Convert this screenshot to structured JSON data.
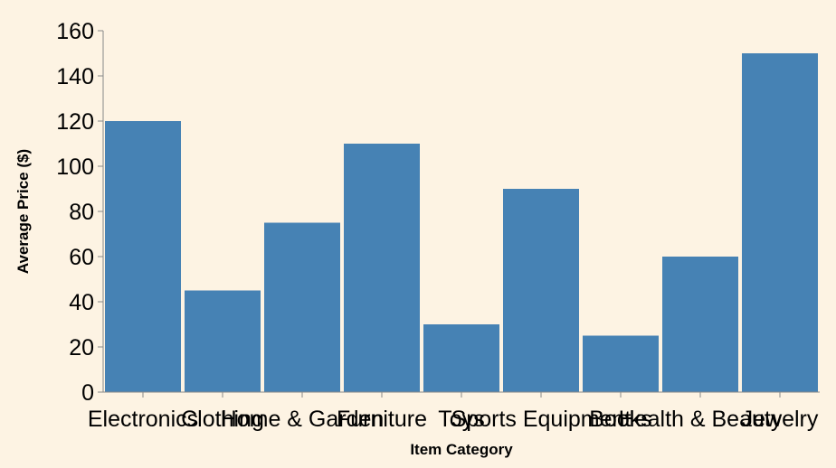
{
  "chart_data": {
    "type": "bar",
    "categories": [
      "Electronics",
      "Clothing",
      "Home & Garden",
      "Furniture",
      "Toys",
      "Sports Equipment",
      "Books",
      "Health & Beauty",
      "Jewelry"
    ],
    "values": [
      120,
      45,
      75,
      110,
      30,
      90,
      25,
      60,
      150
    ],
    "xlabel": "Item Category",
    "ylabel": "Average Price ($)",
    "ylim": [
      0,
      160
    ],
    "yticks": [
      0,
      20,
      40,
      60,
      80,
      100,
      120,
      140,
      160
    ],
    "bar_color": "#4682b4",
    "background_color": "#fdf3e3",
    "grid": false,
    "legend": "none"
  }
}
